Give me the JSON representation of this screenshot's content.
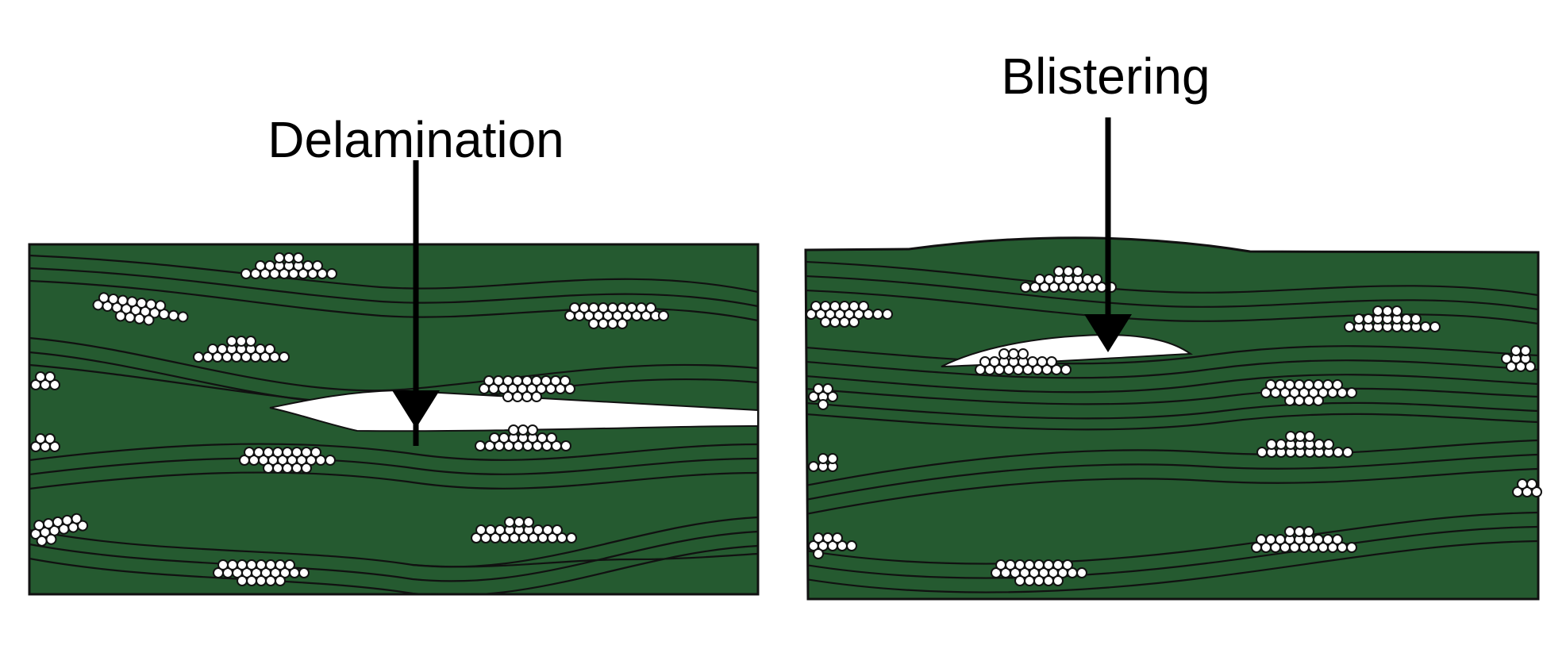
{
  "panels": [
    {
      "id": "delamination",
      "label": "Delamination"
    },
    {
      "id": "blistering",
      "label": "Blistering"
    }
  ],
  "colors": {
    "laminate": "#255a30",
    "void": "#ffffff",
    "line": "#111111",
    "fiber": "#ffffff",
    "arrow": "#000000"
  },
  "icons": [
    "arrow-down-icon"
  ]
}
